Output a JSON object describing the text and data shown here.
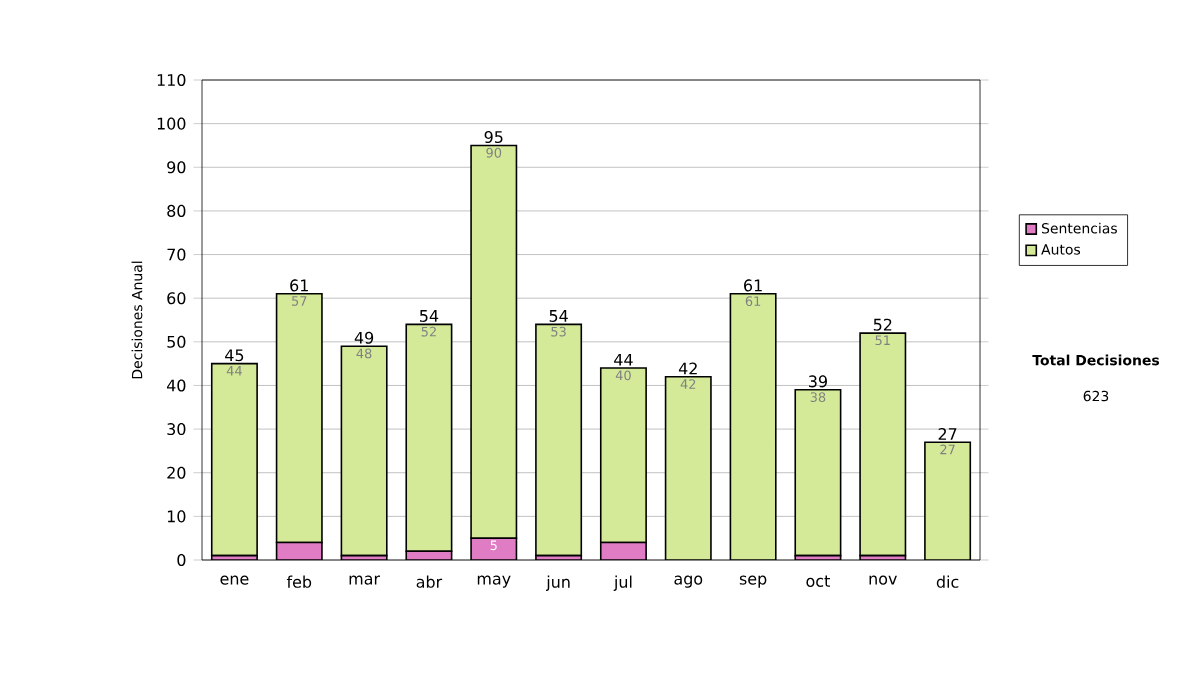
{
  "chart_data": {
    "type": "bar",
    "stacked": true,
    "ylabel": "Decisiones Anual",
    "categories": [
      "ene",
      "feb",
      "mar",
      "abr",
      "may",
      "jun",
      "jul",
      "ago",
      "sep",
      "oct",
      "nov",
      "dic"
    ],
    "series": [
      {
        "name": "Sentencias",
        "color": "#df7cc4",
        "values": [
          1,
          4,
          1,
          2,
          5,
          1,
          4,
          0,
          0,
          1,
          1,
          0
        ],
        "value_labels": [
          null,
          null,
          null,
          null,
          "5",
          null,
          null,
          null,
          null,
          null,
          null,
          null
        ]
      },
      {
        "name": "Autos",
        "color": "#d4ea98",
        "values": [
          44,
          57,
          48,
          52,
          90,
          53,
          40,
          42,
          61,
          38,
          51,
          27
        ],
        "value_labels": [
          "44",
          "57",
          "48",
          "52",
          "90",
          "53",
          "40",
          "42",
          "61",
          "38",
          "51",
          "27"
        ]
      }
    ],
    "totals": [
      "45",
      "61",
      "49",
      "54",
      "95",
      "54",
      "44",
      "42",
      "61",
      "39",
      "52",
      "27"
    ],
    "ylim": [
      0,
      110
    ],
    "yticks": [
      0,
      10,
      20,
      30,
      40,
      50,
      60,
      70,
      80,
      90,
      100,
      110
    ],
    "grid": "y",
    "legend": "right",
    "annotations": [
      "Total Decisiones",
      "623"
    ]
  }
}
